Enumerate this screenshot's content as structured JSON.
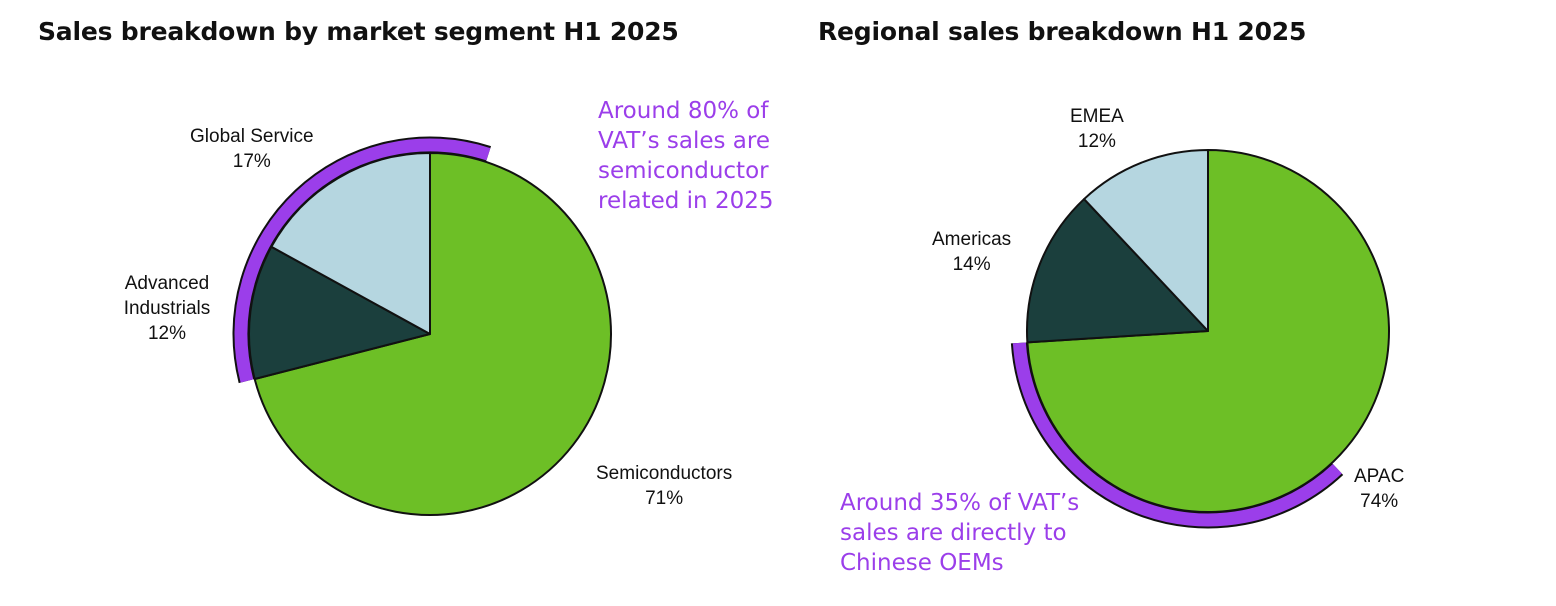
{
  "colors": {
    "highlight": "#9b3eea",
    "green": "#6dbf26",
    "dark_green": "#1b3f3d",
    "light_blue": "#b5d6e0",
    "outline": "#111111",
    "background": "#ffffff"
  },
  "chart_data": [
    {
      "type": "pie",
      "title": "Sales breakdown by market segment H1 2025",
      "slices": [
        {
          "label": "Semiconductors",
          "value": 71,
          "value_label": "71%",
          "color": "#6dbf26"
        },
        {
          "label": "Advanced Industrials",
          "value": 12,
          "value_label": "12%",
          "color": "#1b3f3d"
        },
        {
          "label": "Global Service",
          "value": 17,
          "value_label": "17%",
          "color": "#b5d6e0"
        }
      ],
      "highlight": {
        "description": "arc spanning Global Service through Semiconductors",
        "start_percent": 71,
        "end_percent": 105,
        "text_lines": [
          "Around 80% of",
          "VAT’s sales are",
          "semiconductor",
          "related in 2025"
        ]
      }
    },
    {
      "type": "pie",
      "title": "Regional sales breakdown H1 2025",
      "slices": [
        {
          "label": "APAC",
          "value": 74,
          "value_label": "74%",
          "color": "#6dbf26"
        },
        {
          "label": "Americas",
          "value": 14,
          "value_label": "14%",
          "color": "#1b3f3d"
        },
        {
          "label": "EMEA",
          "value": 12,
          "value_label": "12%",
          "color": "#b5d6e0"
        }
      ],
      "highlight": {
        "description": "arc along part of the APAC slice",
        "start_percent": 38,
        "end_percent": 74,
        "text_lines": [
          "Around 35% of VAT’s",
          "sales are directly to",
          "Chinese OEMs"
        ]
      }
    }
  ]
}
